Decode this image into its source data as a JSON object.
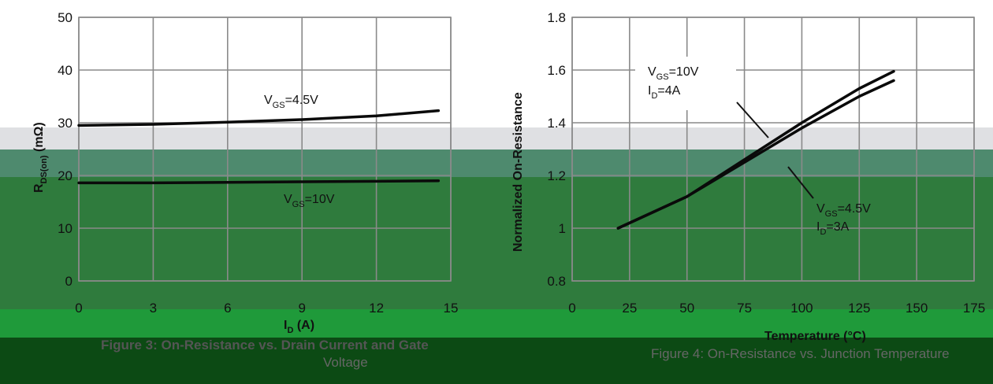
{
  "chart_data": [
    {
      "type": "line",
      "x_ticks": [
        "0",
        "3",
        "6",
        "9",
        "12",
        "15"
      ],
      "y_ticks": [
        "0",
        "10",
        "20",
        "30",
        "40",
        "50"
      ],
      "xlim": [
        0,
        15
      ],
      "ylim": [
        0,
        50
      ],
      "xlabel": "I",
      "xlabel_sub": "D",
      "xlabel_unit": " (A)",
      "ylabel": "R",
      "ylabel_sub": "DS(on)",
      "ylabel_unit": " (mΩ)",
      "grid": true,
      "series": [
        {
          "name": "VGS=4.5V",
          "x": [
            0,
            3,
            6,
            9,
            12,
            14.5
          ],
          "y": [
            29.5,
            29.7,
            30.1,
            30.6,
            31.3,
            32.3
          ]
        },
        {
          "name": "VGS=10V",
          "x": [
            0,
            3,
            6,
            9,
            12,
            14.5
          ],
          "y": [
            18.6,
            18.6,
            18.7,
            18.8,
            18.9,
            19.0
          ]
        }
      ],
      "annotations": [
        {
          "main": "V",
          "sub": "GS",
          "rest": "=4.5V"
        },
        {
          "main": "V",
          "sub": "GS",
          "rest": "=10V"
        }
      ],
      "caption": "Figure 3: On-Resistance vs. Drain Current and Gate",
      "caption_line2": "Voltage"
    },
    {
      "type": "line",
      "x_ticks": [
        "0",
        "25",
        "50",
        "75",
        "100",
        "125",
        "150",
        "175"
      ],
      "y_ticks": [
        "0.8",
        "1",
        "1.2",
        "1.4",
        "1.6",
        "1.8"
      ],
      "xlim": [
        0,
        175
      ],
      "ylim": [
        0.8,
        1.8
      ],
      "xlabel": "Temperature (°C)",
      "ylabel": "Normalized On-Resistance",
      "grid": true,
      "series": [
        {
          "name": "VGS=10V, ID=4A",
          "x": [
            20,
            50,
            75,
            100,
            125,
            140
          ],
          "y": [
            1.0,
            1.12,
            1.26,
            1.4,
            1.53,
            1.595
          ]
        },
        {
          "name": "VGS=4.5V, ID=3A",
          "x": [
            20,
            50,
            75,
            100,
            125,
            140
          ],
          "y": [
            1.0,
            1.12,
            1.25,
            1.38,
            1.5,
            1.56
          ]
        }
      ],
      "annotations": [
        {
          "main": "V",
          "sub": "GS",
          "rest": "=10V"
        },
        {
          "main": "I",
          "sub": "D",
          "rest": "=4A"
        },
        {
          "main": "V",
          "sub": "GS",
          "rest": "=4.5V"
        },
        {
          "main": "I",
          "sub": "D",
          "rest": "=3A"
        }
      ],
      "caption": "Figure 4: On-Resistance vs. Junction Temperature"
    }
  ]
}
